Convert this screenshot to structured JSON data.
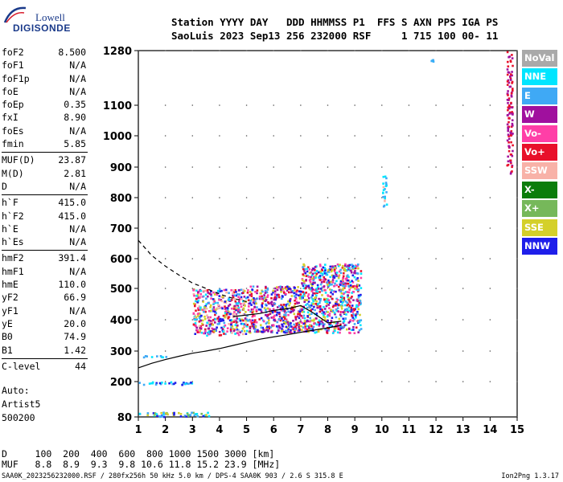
{
  "logo": {
    "line1": "Lowell",
    "line2": "DIGISONDE"
  },
  "header": {
    "line1": "Station YYYY DAY   DDD HHMMSS P1  FFS S AXN PPS IGA PS",
    "line2": "SaoLuis 2023 Sep13 256 232000 RSF     1 715 100 00- 11"
  },
  "params": [
    {
      "label": "foF2",
      "value": "8.500"
    },
    {
      "label": "foF1",
      "value": "N/A"
    },
    {
      "label": "foF1p",
      "value": "N/A"
    },
    {
      "label": "foE",
      "value": "N/A"
    },
    {
      "label": "foEp",
      "value": "0.35"
    },
    {
      "label": "fxI",
      "value": "8.90"
    },
    {
      "label": "foEs",
      "value": "N/A"
    },
    {
      "label": "fmin",
      "value": "5.85"
    },
    {
      "sep": true
    },
    {
      "label": "MUF(D)",
      "value": "23.87"
    },
    {
      "label": "M(D)",
      "value": "2.81"
    },
    {
      "label": "D",
      "value": "N/A"
    },
    {
      "sep": true
    },
    {
      "label": "h`F",
      "value": "415.0"
    },
    {
      "label": "h`F2",
      "value": "415.0"
    },
    {
      "label": "h`E",
      "value": "N/A"
    },
    {
      "label": "h`Es",
      "value": "N/A"
    },
    {
      "sep": true
    },
    {
      "label": "hmF2",
      "value": "391.4"
    },
    {
      "label": "hmF1",
      "value": "N/A"
    },
    {
      "label": "hmE",
      "value": "110.0"
    },
    {
      "label": "yF2",
      "value": "66.9"
    },
    {
      "label": "yF1",
      "value": "N/A"
    },
    {
      "label": "yE",
      "value": "20.0"
    },
    {
      "label": "B0",
      "value": "74.9"
    },
    {
      "label": "B1",
      "value": "1.42"
    },
    {
      "sep": true
    },
    {
      "label": "C-level",
      "value": "44"
    }
  ],
  "autoscaling": {
    "line1": "Auto:",
    "line2": "Artist5",
    "line3": "500200"
  },
  "footer": {
    "d_row": "D     100  200  400  600  800 1000 1500 3000 [km]",
    "muf_row": "MUF   8.8  8.9  9.3  9.8 10.6 11.8 15.2 23.9 [MHz]",
    "file_info": "SAA0K_2023256232000.RSF / 280fx256h 50 kHz 5.0 km / DPS-4 SAA0K 903 / 2.6 S 315.8 E",
    "version": "Ion2Png 1.3.17"
  },
  "legend": [
    {
      "label": "NoVal",
      "color": "#a9a9a9"
    },
    {
      "label": "NNE",
      "color": "#00e5ff"
    },
    {
      "label": "E",
      "color": "#3fa9f5"
    },
    {
      "label": "W",
      "color": "#a0109e"
    },
    {
      "label": "Vo-",
      "color": "#ff3fa7"
    },
    {
      "label": "Vo+",
      "color": "#e8102a"
    },
    {
      "label": "SSW",
      "color": "#f8b2a8"
    },
    {
      "label": "X-",
      "color": "#0b7d0b"
    },
    {
      "label": "X+",
      "color": "#76b85a"
    },
    {
      "label": "SSE",
      "color": "#d4d02a"
    },
    {
      "label": "NNW",
      "color": "#1e1eea"
    }
  ],
  "chart_data": {
    "type": "scatter",
    "xlabel": "",
    "ylabel": "",
    "xlim": [
      1,
      15
    ],
    "ylim": [
      80,
      1280
    ],
    "xticks": [
      1,
      2,
      3,
      4,
      5,
      6,
      7,
      8,
      9,
      10,
      11,
      12,
      13,
      14,
      15
    ],
    "yticks": [
      80,
      200,
      300,
      400,
      500,
      600,
      700,
      800,
      900,
      1000,
      1100,
      1280
    ],
    "ytick_labels": [
      "80",
      "200",
      "300",
      "400",
      "500",
      "600",
      "700",
      "800",
      "900",
      "1000",
      "1100",
      "1280"
    ],
    "grid": true,
    "series": [
      {
        "kind": "line",
        "style": "solid",
        "x": [
          1.0,
          1.5,
          2.0,
          2.5,
          3.0,
          3.5,
          4.0,
          4.5,
          5.0,
          5.5,
          6.0,
          6.5,
          7.0,
          7.5,
          8.0,
          8.5
        ],
        "y": [
          245,
          260,
          272,
          283,
          293,
          300,
          308,
          318,
          328,
          338,
          345,
          352,
          360,
          367,
          374,
          382
        ]
      },
      {
        "kind": "line",
        "style": "dashed",
        "x": [
          1.0,
          1.5,
          2.0,
          2.5,
          3.0,
          3.5,
          4.0,
          4.5,
          5.0
        ],
        "y": [
          660,
          610,
          575,
          545,
          518,
          500,
          482,
          468,
          458
        ]
      },
      {
        "kind": "line",
        "style": "solid",
        "x": [
          4.5,
          5.0,
          5.5,
          6.0,
          6.5,
          7.0,
          7.5,
          8.0,
          8.5
        ],
        "y": [
          410,
          415,
          420,
          430,
          435,
          445,
          420,
          390,
          395
        ]
      }
    ],
    "echo_clusters": [
      {
        "x": [
          1.0,
          2.0
        ],
        "y": [
          282,
          288
        ],
        "colors": [
          "NNE",
          "E"
        ]
      },
      {
        "x": [
          1.0,
          3.0
        ],
        "y": [
          192,
          202
        ],
        "colors": [
          "E",
          "NNW",
          "NNE"
        ]
      },
      {
        "x": [
          1.0,
          3.6
        ],
        "y": [
          83,
          98
        ],
        "colors": [
          "X+",
          "NNW",
          "NNE",
          "E",
          "SSE"
        ]
      },
      {
        "x": [
          3.0,
          5.0
        ],
        "y": [
          352,
          500
        ],
        "colors": [
          "W",
          "Vo-",
          "Vo+",
          "SSE",
          "NNW",
          "E",
          "NNE",
          "SSW"
        ]
      },
      {
        "x": [
          5.0,
          7.0
        ],
        "y": [
          360,
          510
        ],
        "colors": [
          "W",
          "Vo-",
          "Vo+",
          "NNW",
          "SSE",
          "E"
        ]
      },
      {
        "x": [
          7.0,
          9.2
        ],
        "y": [
          360,
          585
        ],
        "colors": [
          "Vo+",
          "Vo-",
          "W",
          "SSE",
          "NNW",
          "E",
          "NNE"
        ]
      },
      {
        "x": [
          10.0,
          10.15
        ],
        "y": [
          770,
          875
        ],
        "colors": [
          "E",
          "SSW",
          "NNE"
        ]
      },
      {
        "x": [
          11.8,
          11.9
        ],
        "y": [
          1245,
          1255
        ],
        "colors": [
          "E",
          "NNE"
        ]
      },
      {
        "x": [
          14.6,
          14.8
        ],
        "y": [
          880,
          1280
        ],
        "colors": [
          "W",
          "Vo+"
        ]
      }
    ]
  }
}
